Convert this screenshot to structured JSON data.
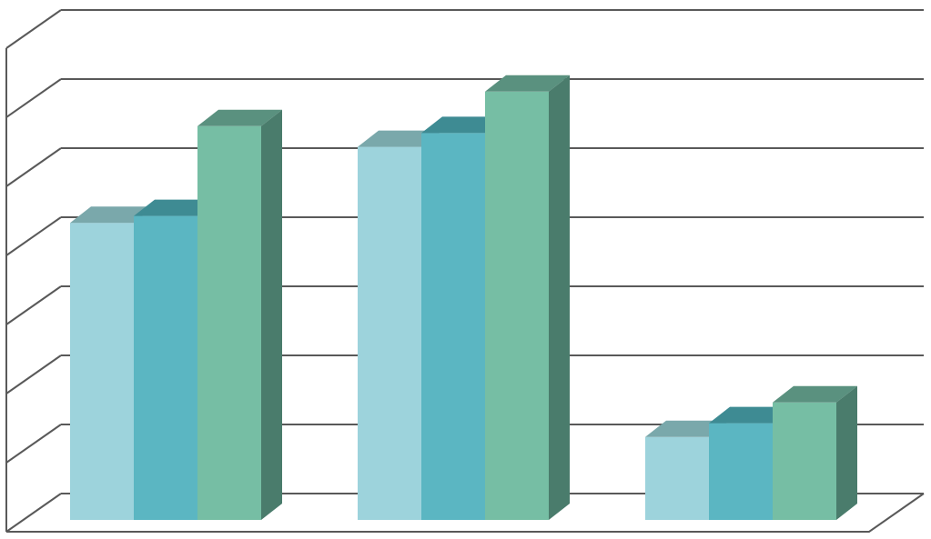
{
  "chart_data": {
    "type": "bar",
    "style": "3d-clustered-column",
    "categories": [
      "",
      "",
      ""
    ],
    "series": [
      {
        "values": [
          4.3,
          5.4,
          1.2
        ],
        "color_front": "#9dd3dc",
        "color_top": "#7aa8ab",
        "color_side": "#6fa4a8"
      },
      {
        "values": [
          4.4,
          5.6,
          1.4
        ],
        "color_front": "#5bb6c2",
        "color_top": "#3e8b93",
        "color_side": "#3f8790"
      },
      {
        "values": [
          5.7,
          6.2,
          1.7
        ],
        "color_front": "#76bea4",
        "color_top": "#5a917f",
        "color_side": "#4a7c6c"
      }
    ],
    "ylim": [
      0,
      7
    ],
    "grid": true,
    "gridline_color": "#595959",
    "title": "",
    "xlabel": "",
    "ylabel": ""
  }
}
